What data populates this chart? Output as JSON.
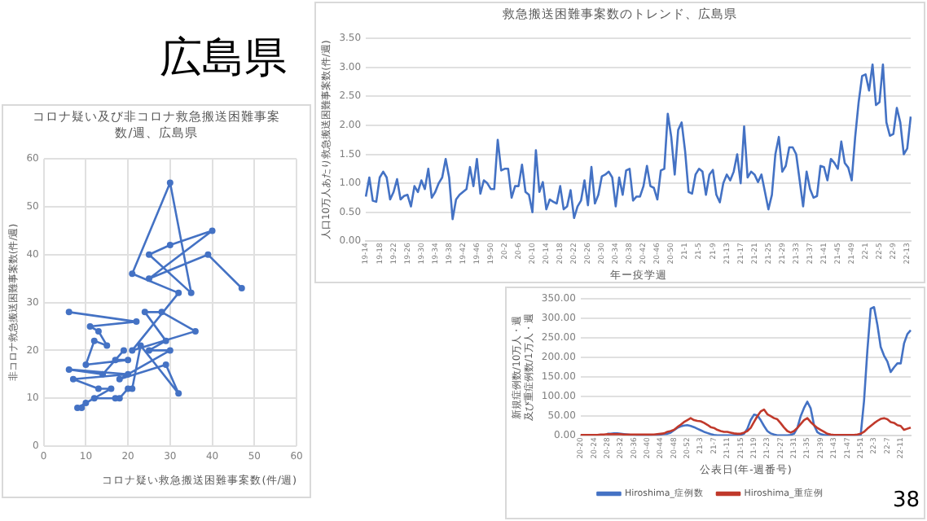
{
  "chart_data": [
    {
      "type": "other",
      "title": "広島県",
      "annotations": [
        "38"
      ]
    },
    {
      "type": "line",
      "title": "コロナ疑い及び非コロナ救急搬送困難事案数/週、広島県",
      "xlabel": "コロナ疑い救急搬送困難事案数(件/週)",
      "ylabel": "非コロナ救急搬送困難事案数(件/週)",
      "marker": "circle",
      "grid": true,
      "legend": false,
      "x": [
        6,
        22,
        11,
        13,
        15,
        12,
        10,
        20,
        17,
        19,
        14,
        6,
        20,
        7,
        13,
        16,
        8,
        9,
        10,
        12,
        17,
        18,
        20,
        21,
        23,
        32,
        29,
        18,
        30,
        25,
        29,
        24,
        28,
        36,
        21,
        32,
        21,
        30,
        35,
        25,
        30,
        40,
        25,
        39,
        47
      ],
      "values": [
        28,
        26,
        25,
        24,
        21,
        22,
        17,
        18,
        18,
        20,
        15,
        16,
        15,
        14,
        12,
        12,
        8,
        8,
        9,
        10,
        10,
        10,
        12,
        12,
        21,
        11,
        17,
        14,
        20,
        20,
        22,
        28,
        28,
        24,
        20,
        32,
        36,
        55,
        32,
        40,
        42,
        45,
        35,
        40,
        33
      ],
      "color": "#4472c4",
      "xlim": [
        0,
        60
      ],
      "xticks": [
        0,
        10,
        20,
        30,
        40,
        50,
        60
      ],
      "ylim": [
        0,
        60
      ],
      "yticks": [
        0,
        10,
        20,
        30,
        40,
        50,
        60
      ]
    },
    {
      "type": "line",
      "title": "救急搬送困難事案数のトレンド、広島県",
      "xlabel": "年ー疫学週",
      "ylabel": "人口10万人あたり救急搬送困難事案数(件/週)",
      "marker": "none",
      "grid": "y",
      "legend": false,
      "color": "#4472c4",
      "categories": [
        "19-14",
        null,
        null,
        null,
        "19-18",
        null,
        null,
        null,
        "19-22",
        null,
        null,
        null,
        "19-26",
        null,
        null,
        null,
        "19-30",
        null,
        null,
        null,
        "19-34",
        null,
        null,
        null,
        "19-38",
        null,
        null,
        null,
        "19-42",
        null,
        null,
        null,
        "19-46",
        null,
        null,
        null,
        "19-50",
        null,
        null,
        null,
        "20-2",
        null,
        null,
        null,
        "20-6",
        null,
        null,
        null,
        "20-10",
        null,
        null,
        null,
        "20-14",
        null,
        null,
        null,
        "20-18",
        null,
        null,
        null,
        "20-22",
        null,
        null,
        null,
        "20-26",
        null,
        null,
        null,
        "20-30",
        null,
        null,
        null,
        "20-34",
        null,
        null,
        null,
        "20-38",
        null,
        null,
        null,
        "20-42",
        null,
        null,
        null,
        "20-46",
        null,
        null,
        null,
        "20-50",
        null,
        null,
        null,
        "21-1",
        null,
        null,
        null,
        "21-5",
        null,
        null,
        null,
        "21-9",
        null,
        null,
        null,
        "21-13",
        null,
        null,
        null,
        "21-17",
        null,
        null,
        null,
        "21-21",
        null,
        null,
        null,
        "21-25",
        null,
        null,
        null,
        "21-29",
        null,
        null,
        null,
        "21-33",
        null,
        null,
        null,
        "21-37",
        null,
        null,
        null,
        "21-41",
        null,
        null,
        null,
        "21-45",
        null,
        null,
        null,
        "21-49",
        null,
        null,
        null,
        "22-1",
        null,
        null,
        null,
        "22-5",
        null,
        null,
        null,
        "22-9",
        null,
        null,
        null,
        "22-13",
        null
      ],
      "values": [
        0.77,
        1.1,
        0.7,
        0.68,
        1.1,
        1.2,
        1.1,
        0.72,
        0.85,
        1.07,
        0.72,
        0.78,
        0.8,
        0.6,
        0.95,
        0.85,
        1.05,
        0.9,
        1.25,
        0.75,
        0.85,
        1.0,
        1.1,
        1.42,
        1.1,
        0.38,
        0.72,
        0.8,
        0.85,
        0.9,
        1.28,
        0.95,
        1.42,
        0.82,
        1.05,
        1.0,
        0.9,
        0.9,
        1.75,
        1.22,
        1.25,
        1.25,
        0.75,
        0.95,
        0.95,
        1.32,
        0.85,
        0.8,
        0.5,
        1.57,
        0.85,
        1.02,
        0.55,
        0.72,
        0.68,
        0.65,
        0.95,
        0.55,
        0.6,
        0.88,
        0.4,
        0.6,
        0.7,
        1.05,
        0.62,
        1.28,
        0.65,
        0.8,
        1.12,
        1.15,
        1.2,
        1.1,
        0.6,
        1.1,
        0.8,
        1.22,
        1.25,
        0.7,
        0.77,
        0.77,
        0.95,
        1.3,
        0.95,
        0.92,
        0.72,
        1.22,
        1.25,
        2.2,
        1.8,
        1.15,
        1.92,
        2.05,
        1.55,
        0.85,
        0.82,
        1.15,
        1.25,
        1.2,
        0.8,
        1.15,
        1.23,
        0.8,
        0.67,
        1.0,
        1.15,
        1.05,
        1.2,
        1.5,
        1.0,
        1.98,
        1.1,
        1.2,
        1.15,
        1.02,
        1.15,
        0.85,
        0.55,
        0.8,
        1.5,
        1.8,
        1.2,
        1.3,
        1.62,
        1.62,
        1.5,
        1.05,
        0.6,
        1.2,
        0.9,
        0.75,
        0.78,
        1.3,
        1.28,
        1.05,
        1.42,
        1.35,
        1.25,
        1.72,
        1.35,
        1.27,
        1.05,
        1.8,
        2.4,
        2.85,
        2.88,
        2.6,
        3.05,
        2.35,
        2.4,
        3.05,
        2.05,
        1.82,
        1.85,
        2.3,
        2.05,
        1.5,
        1.6,
        2.15
      ],
      "ylim": [
        0,
        3.5
      ],
      "yticks": [
        {
          "value": 0,
          "label": "0.00"
        },
        {
          "value": 0.5,
          "label": "0.50"
        },
        {
          "value": 1,
          "label": "1.00"
        },
        {
          "value": 1.5,
          "label": "1.50"
        },
        {
          "value": 2,
          "label": "2.00"
        },
        {
          "value": 2.5,
          "label": "2.50"
        },
        {
          "value": 3,
          "label": "3.00"
        },
        {
          "value": 3.5,
          "label": "3.50"
        }
      ]
    },
    {
      "type": "line",
      "xlabel": "公表日(年-週番号)",
      "ylabel": "新規症例数/10万人・週及び重症例数/1万人・週",
      "marker": "none",
      "grid": "y",
      "legend": "bottom",
      "categories": [
        "20-20",
        null,
        null,
        null,
        "20-24",
        null,
        null,
        null,
        "20-28",
        null,
        null,
        null,
        "20-32",
        null,
        null,
        null,
        "20-36",
        null,
        null,
        null,
        "20-40",
        null,
        null,
        null,
        "20-44",
        null,
        null,
        null,
        "20-48",
        null,
        null,
        null,
        "20-52",
        null,
        null,
        null,
        "21-3",
        null,
        null,
        null,
        "21-7",
        null,
        null,
        null,
        "21-11",
        null,
        null,
        null,
        "21-15",
        null,
        null,
        null,
        "21-19",
        null,
        null,
        null,
        "21-23",
        null,
        null,
        null,
        "21-27",
        null,
        null,
        null,
        "21-31",
        null,
        null,
        null,
        "21-35",
        null,
        null,
        null,
        "21-39",
        null,
        null,
        null,
        "21-43",
        null,
        null,
        null,
        "21-47",
        null,
        null,
        null,
        "21-51",
        null,
        null,
        null,
        "22-3",
        null,
        null,
        null,
        "22-7",
        null,
        null,
        null,
        "22-11",
        null,
        null,
        null
      ],
      "series": [
        {
          "name": "Hiroshima_症例数",
          "color": "#4472c4",
          "values": [
            null,
            null,
            null,
            null,
            null,
            null,
            null,
            null,
            5,
            5,
            6,
            6,
            5,
            4,
            3,
            2,
            2,
            1,
            1,
            1,
            1,
            1,
            2,
            2,
            3,
            4,
            5,
            8,
            14,
            20,
            24,
            26,
            27,
            25,
            22,
            18,
            14,
            10,
            7,
            4,
            2,
            1,
            1,
            1,
            1,
            1,
            1,
            1,
            2,
            5,
            18,
            40,
            54,
            52,
            40,
            25,
            12,
            6,
            3,
            1,
            1,
            1,
            1,
            2,
            5,
            20,
            50,
            71,
            87,
            70,
            27,
            9,
            4,
            2,
            1,
            1,
            1,
            1,
            1,
            1,
            1,
            1,
            1,
            1,
            2,
            89,
            218,
            325,
            329,
            284,
            227,
            205,
            190,
            163,
            175,
            185,
            185,
            236,
            260,
            270
          ]
        },
        {
          "name": "Hiroshima_重症例",
          "color": "#c0392b",
          "values": [
            2,
            2,
            2,
            2,
            2,
            2,
            3,
            3,
            4,
            4,
            4,
            4,
            4,
            3,
            3,
            3,
            3,
            3,
            3,
            3,
            3,
            3,
            3,
            4,
            5,
            6,
            10,
            12,
            15,
            22,
            28,
            35,
            40,
            45,
            40,
            38,
            37,
            33,
            28,
            22,
            20,
            15,
            12,
            10,
            10,
            8,
            6,
            5,
            5,
            8,
            12,
            20,
            35,
            50,
            62,
            67,
            55,
            50,
            45,
            42,
            32,
            21,
            12,
            8,
            12,
            20,
            30,
            40,
            45,
            35,
            27,
            20,
            15,
            10,
            5,
            3,
            2,
            2,
            2,
            2,
            2,
            2,
            2,
            3,
            5,
            10,
            18,
            25,
            32,
            38,
            43,
            45,
            42,
            35,
            33,
            27,
            25,
            15,
            18,
            21
          ]
        }
      ],
      "ylim": [
        0,
        350
      ],
      "yticks": [
        {
          "value": 0,
          "label": "0.00"
        },
        {
          "value": 50,
          "label": "50.00"
        },
        {
          "value": 100,
          "label": "100.00"
        },
        {
          "value": 150,
          "label": "150.00"
        },
        {
          "value": 200,
          "label": "200.00"
        },
        {
          "value": 250,
          "label": "250.00"
        },
        {
          "value": 300,
          "label": "300.00"
        },
        {
          "value": 350,
          "label": "350.00"
        }
      ]
    }
  ]
}
